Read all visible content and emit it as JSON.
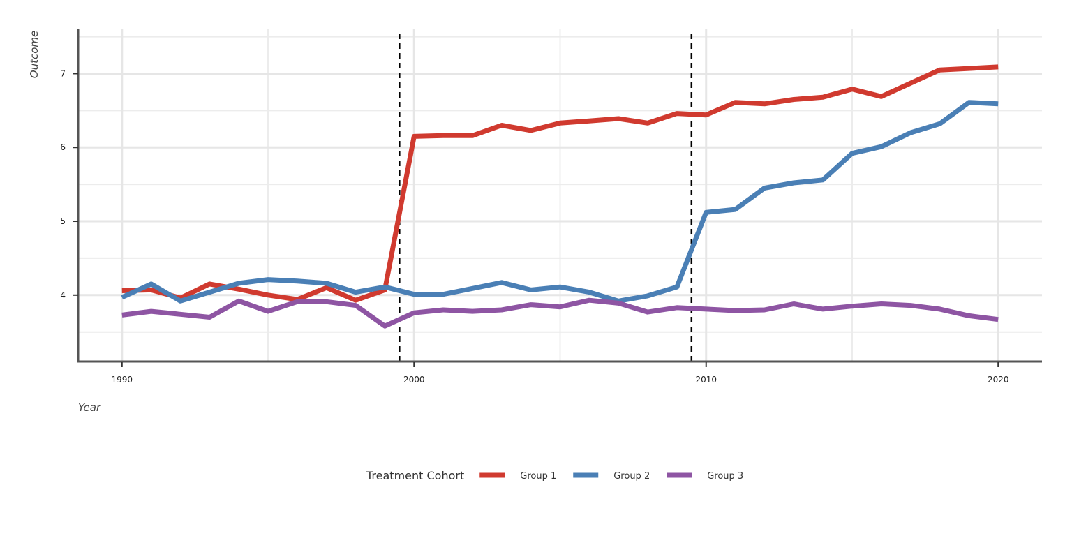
{
  "chart_data": {
    "type": "line",
    "title": "",
    "xlabel": "Year",
    "ylabel": "Outcome",
    "xlim": [
      1988.5,
      2021.5
    ],
    "ylim": [
      3.1,
      7.6
    ],
    "xticks": [
      1990,
      2000,
      2010,
      2020
    ],
    "yticks": [
      4,
      5,
      6,
      7
    ],
    "grid": true,
    "legend": {
      "title": "Treatment Cohort",
      "position": "bottom"
    },
    "vlines": [
      1999.5,
      2009.5
    ],
    "x": [
      1990,
      1991,
      1992,
      1993,
      1994,
      1995,
      1996,
      1997,
      1998,
      1999,
      2000,
      2001,
      2002,
      2003,
      2004,
      2005,
      2006,
      2007,
      2008,
      2009,
      2010,
      2011,
      2012,
      2013,
      2014,
      2015,
      2016,
      2017,
      2018,
      2019,
      2020
    ],
    "series": [
      {
        "name": "Group 1",
        "color": "#d03a2f",
        "values": [
          4.06,
          4.07,
          3.96,
          4.15,
          4.08,
          4.0,
          3.94,
          4.1,
          3.93,
          4.07,
          6.15,
          6.16,
          6.16,
          6.3,
          6.23,
          6.33,
          6.36,
          6.39,
          6.33,
          6.46,
          6.44,
          6.61,
          6.59,
          6.65,
          6.68,
          6.79,
          6.69,
          6.87,
          7.05,
          7.07,
          7.09
        ]
      },
      {
        "name": "Group 2",
        "color": "#4a7fb5",
        "values": [
          3.97,
          4.15,
          3.92,
          4.04,
          4.16,
          4.21,
          4.19,
          4.16,
          4.04,
          4.11,
          4.01,
          4.01,
          4.09,
          4.17,
          4.07,
          4.11,
          4.04,
          3.92,
          3.99,
          4.11,
          5.12,
          5.16,
          5.45,
          5.52,
          5.56,
          5.92,
          6.01,
          6.2,
          6.32,
          6.61,
          6.59
        ]
      },
      {
        "name": "Group 3",
        "color": "#8e55a3",
        "values": [
          3.73,
          3.78,
          3.74,
          3.7,
          3.92,
          3.78,
          3.91,
          3.91,
          3.86,
          3.58,
          3.76,
          3.8,
          3.78,
          3.8,
          3.87,
          3.84,
          3.93,
          3.89,
          3.77,
          3.83,
          3.81,
          3.79,
          3.8,
          3.88,
          3.81,
          3.85,
          3.88,
          3.86,
          3.81,
          3.72,
          3.67
        ]
      }
    ]
  }
}
